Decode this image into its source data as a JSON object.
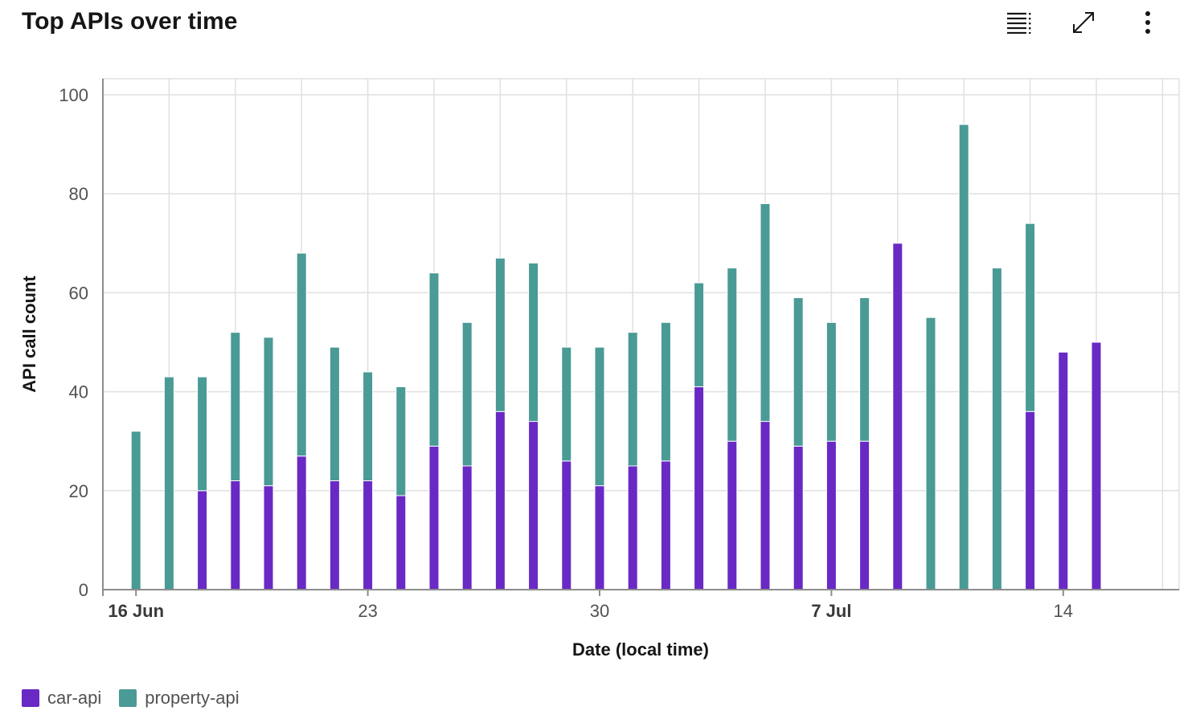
{
  "header": {
    "title": "Top APIs over time"
  },
  "toolbar": {
    "icons": [
      "table-view-icon",
      "maximize-icon",
      "overflow-menu-icon"
    ]
  },
  "chart_data": {
    "type": "bar",
    "stacked": true,
    "title": "Top APIs over time",
    "xlabel": "Date (local time)",
    "ylabel": "API call count",
    "ylim": [
      0,
      100
    ],
    "yticks": [
      0,
      20,
      40,
      60,
      80,
      100
    ],
    "x_tick_labels": [
      {
        "date": "2024-06-16",
        "label": "16 Jun",
        "bold": true
      },
      {
        "date": "2024-06-23",
        "label": "23",
        "bold": false
      },
      {
        "date": "2024-06-30",
        "label": "30",
        "bold": false
      },
      {
        "date": "2024-07-07",
        "label": "7 Jul",
        "bold": true
      },
      {
        "date": "2024-07-14",
        "label": "14",
        "bold": false
      }
    ],
    "x_range": [
      "2024-06-16",
      "2024-07-17"
    ],
    "grid": true,
    "legend_position": "bottom-left",
    "categories": [
      "2024-06-16",
      "2024-06-17",
      "2024-06-18",
      "2024-06-19",
      "2024-06-20",
      "2024-06-21",
      "2024-06-22",
      "2024-06-23",
      "2024-06-24",
      "2024-06-25",
      "2024-06-26",
      "2024-06-27",
      "2024-06-28",
      "2024-06-29",
      "2024-06-30",
      "2024-07-01",
      "2024-07-02",
      "2024-07-03",
      "2024-07-04",
      "2024-07-05",
      "2024-07-06",
      "2024-07-07",
      "2024-07-08",
      "2024-07-09",
      "2024-07-10",
      "2024-07-11",
      "2024-07-12",
      "2024-07-13",
      "2024-07-14",
      "2024-07-15"
    ],
    "series": [
      {
        "name": "car-api",
        "color": "#6929c4",
        "values": [
          0,
          0,
          20,
          22,
          21,
          27,
          22,
          22,
          19,
          29,
          25,
          36,
          34,
          26,
          21,
          25,
          26,
          41,
          30,
          34,
          29,
          30,
          30,
          70,
          0,
          0,
          0,
          36,
          48,
          50
        ]
      },
      {
        "name": "property-api",
        "color": "#4a9a96",
        "values": [
          32,
          43,
          23,
          30,
          30,
          41,
          27,
          22,
          22,
          35,
          29,
          31,
          32,
          23,
          28,
          27,
          28,
          21,
          35,
          44,
          30,
          24,
          29,
          0,
          55,
          94,
          65,
          38,
          0,
          0
        ]
      }
    ]
  }
}
